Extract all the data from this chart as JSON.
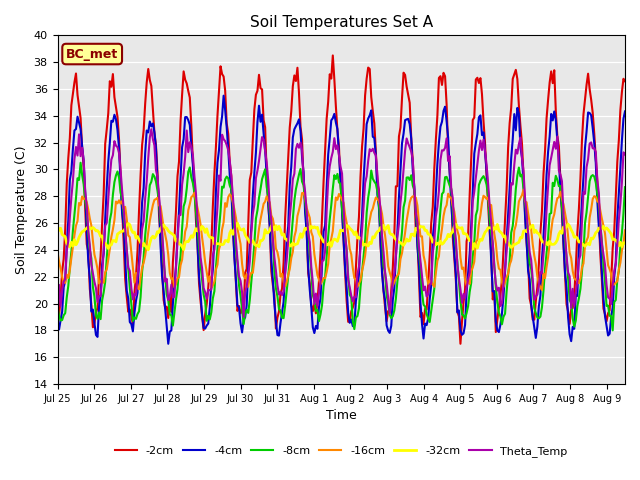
{
  "title": "Soil Temperatures Set A",
  "xlabel": "Time",
  "ylabel": "Soil Temperature (C)",
  "ylim": [
    14,
    40
  ],
  "annotation_text": "BC_met",
  "annotation_color": "#8B0000",
  "annotation_bg": "#FFFF99",
  "tick_labels": [
    "Jul 25",
    "Jul 26",
    "Jul 27",
    "Jul 28",
    "Jul 29",
    "Jul 30",
    "Jul 31",
    "Aug 1",
    "Aug 2",
    "Aug 3",
    "Aug 4",
    "Aug 5",
    "Aug 6",
    "Aug 7",
    "Aug 8",
    "Aug 9"
  ],
  "series": {
    "-2cm": {
      "color": "#DD0000",
      "lw": 1.5
    },
    "-4cm": {
      "color": "#0000CC",
      "lw": 1.5
    },
    "-8cm": {
      "color": "#00CC00",
      "lw": 1.5
    },
    "-16cm": {
      "color": "#FF8800",
      "lw": 1.5
    },
    "-32cm": {
      "color": "#FFFF00",
      "lw": 2.0
    },
    "Theta_Temp": {
      "color": "#AA00AA",
      "lw": 1.5
    }
  },
  "legend_order": [
    "-2cm",
    "-4cm",
    "-8cm",
    "-16cm",
    "-32cm",
    "Theta_Temp"
  ],
  "background_color": "#E8E8E8",
  "face_color": "#FFFFFF"
}
